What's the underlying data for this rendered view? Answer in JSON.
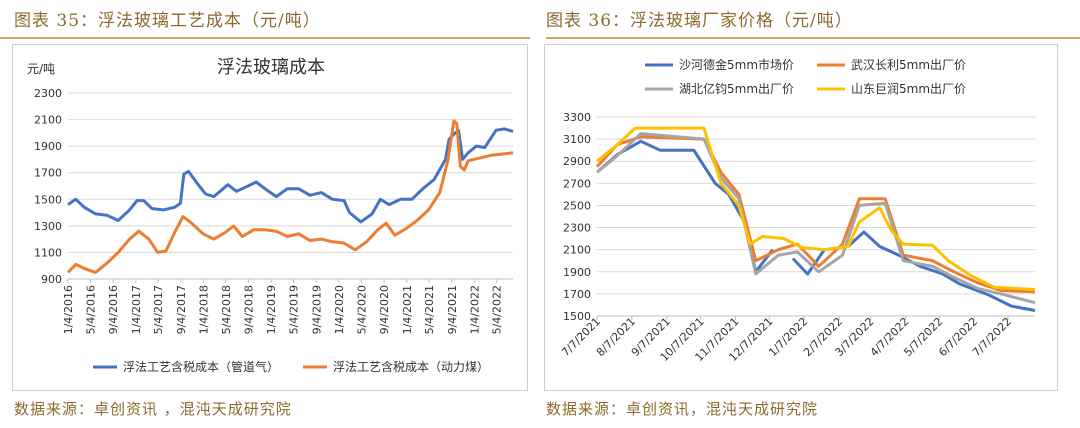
{
  "left": {
    "fig_title": "图表 35：浮法玻璃工艺成本（元/吨）",
    "source": "数据来源：卓创资讯 ，混沌天成研究院"
  },
  "right": {
    "fig_title": "图表 36：浮法玻璃厂家价格（元/吨）",
    "source": "数据来源：卓创资讯，混沌天成研究院"
  },
  "colors": {
    "blue": "#4472c4",
    "orange": "#ed7d31",
    "gray": "#a5a5a5",
    "yellow": "#ffc000",
    "accent": "#8c6a2c"
  },
  "chart_data": [
    {
      "type": "line",
      "title": "浮法玻璃成本",
      "ylabel": "元/吨",
      "ylim": [
        900,
        2300
      ],
      "yticks": [
        "900",
        "1100",
        "1300",
        "1500",
        "1700",
        "1900",
        "2100",
        "2300"
      ],
      "xlim": [
        "2016-01-04",
        "2022-07-31"
      ],
      "xticks": [
        "1/4/2016",
        "5/4/2016",
        "9/4/2016",
        "1/4/2017",
        "5/4/2017",
        "9/4/2017",
        "1/4/2018",
        "5/4/2018",
        "9/4/2018",
        "1/4/2019",
        "5/4/2019",
        "9/4/2019",
        "1/4/2020",
        "5/4/2020",
        "9/4/2020",
        "1/4/2021",
        "5/4/2021",
        "9/4/2021",
        "1/4/2022",
        "5/4/2022"
      ],
      "legend": "bottom",
      "grid": true,
      "series": [
        {
          "name": "浮法工艺含税成本（管道气）",
          "points": [
            [
              "2016-01-04",
              1460
            ],
            [
              "2016-02-15",
              1500
            ],
            [
              "2016-04-01",
              1440
            ],
            [
              "2016-06-01",
              1390
            ],
            [
              "2016-08-01",
              1380
            ],
            [
              "2016-10-01",
              1340
            ],
            [
              "2016-12-01",
              1420
            ],
            [
              "2017-01-10",
              1490
            ],
            [
              "2017-02-15",
              1490
            ],
            [
              "2017-04-01",
              1430
            ],
            [
              "2017-06-01",
              1420
            ],
            [
              "2017-08-01",
              1440
            ],
            [
              "2017-09-01",
              1470
            ],
            [
              "2017-09-20",
              1690
            ],
            [
              "2017-10-15",
              1710
            ],
            [
              "2017-12-01",
              1620
            ],
            [
              "2018-01-15",
              1540
            ],
            [
              "2018-03-01",
              1520
            ],
            [
              "2018-05-15",
              1610
            ],
            [
              "2018-07-01",
              1560
            ],
            [
              "2018-09-01",
              1600
            ],
            [
              "2018-10-15",
              1630
            ],
            [
              "2018-12-01",
              1580
            ],
            [
              "2019-02-01",
              1520
            ],
            [
              "2019-04-01",
              1580
            ],
            [
              "2019-06-01",
              1580
            ],
            [
              "2019-08-01",
              1530
            ],
            [
              "2019-10-01",
              1550
            ],
            [
              "2019-12-01",
              1500
            ],
            [
              "2020-02-01",
              1490
            ],
            [
              "2020-03-01",
              1400
            ],
            [
              "2020-05-01",
              1330
            ],
            [
              "2020-07-01",
              1390
            ],
            [
              "2020-08-15",
              1500
            ],
            [
              "2020-10-01",
              1460
            ],
            [
              "2020-12-01",
              1500
            ],
            [
              "2021-02-01",
              1500
            ],
            [
              "2021-04-01",
              1580
            ],
            [
              "2021-06-01",
              1650
            ],
            [
              "2021-08-01",
              1800
            ],
            [
              "2021-08-20",
              1950
            ],
            [
              "2021-09-15",
              1990
            ],
            [
              "2021-10-10",
              2020
            ],
            [
              "2021-11-01",
              1800
            ],
            [
              "2021-12-01",
              1850
            ],
            [
              "2022-01-15",
              1900
            ],
            [
              "2022-03-01",
              1890
            ],
            [
              "2022-05-01",
              2020
            ],
            [
              "2022-06-15",
              2030
            ],
            [
              "2022-07-31",
              2010
            ]
          ]
        },
        {
          "name": "浮法工艺含税成本（动力煤）",
          "points": [
            [
              "2016-01-04",
              950
            ],
            [
              "2016-02-15",
              1010
            ],
            [
              "2016-04-01",
              980
            ],
            [
              "2016-06-01",
              950
            ],
            [
              "2016-08-01",
              1020
            ],
            [
              "2016-10-01",
              1100
            ],
            [
              "2016-12-01",
              1200
            ],
            [
              "2017-01-20",
              1260
            ],
            [
              "2017-03-15",
              1200
            ],
            [
              "2017-05-01",
              1100
            ],
            [
              "2017-06-15",
              1110
            ],
            [
              "2017-08-01",
              1250
            ],
            [
              "2017-09-15",
              1370
            ],
            [
              "2017-11-01",
              1320
            ],
            [
              "2018-01-01",
              1240
            ],
            [
              "2018-03-01",
              1200
            ],
            [
              "2018-05-01",
              1250
            ],
            [
              "2018-06-15",
              1300
            ],
            [
              "2018-08-01",
              1220
            ],
            [
              "2018-10-01",
              1270
            ],
            [
              "2018-12-01",
              1270
            ],
            [
              "2019-02-01",
              1260
            ],
            [
              "2019-04-01",
              1220
            ],
            [
              "2019-06-01",
              1240
            ],
            [
              "2019-08-01",
              1190
            ],
            [
              "2019-10-01",
              1200
            ],
            [
              "2019-12-01",
              1180
            ],
            [
              "2020-02-01",
              1170
            ],
            [
              "2020-04-01",
              1120
            ],
            [
              "2020-06-01",
              1180
            ],
            [
              "2020-08-01",
              1270
            ],
            [
              "2020-09-15",
              1320
            ],
            [
              "2020-11-01",
              1230
            ],
            [
              "2021-01-01",
              1280
            ],
            [
              "2021-03-01",
              1340
            ],
            [
              "2021-05-01",
              1420
            ],
            [
              "2021-07-01",
              1550
            ],
            [
              "2021-08-15",
              1800
            ],
            [
              "2021-09-15",
              2090
            ],
            [
              "2021-10-01",
              2070
            ],
            [
              "2021-10-20",
              1750
            ],
            [
              "2021-11-10",
              1720
            ],
            [
              "2021-12-01",
              1790
            ],
            [
              "2022-02-01",
              1810
            ],
            [
              "2022-04-01",
              1830
            ],
            [
              "2022-06-01",
              1840
            ],
            [
              "2022-07-31",
              1850
            ]
          ]
        }
      ]
    },
    {
      "type": "line",
      "title": "",
      "ylim": [
        1500,
        3300
      ],
      "yticks": [
        "1500",
        "1700",
        "1900",
        "2100",
        "2300",
        "2500",
        "2700",
        "2900",
        "3100",
        "3300"
      ],
      "xlim": [
        "2021-07-07",
        "2022-07-31"
      ],
      "xticks": [
        "7/7/2021",
        "8/7/2021",
        "9/7/2021",
        "10/7/2021",
        "11/7/2021",
        "12/7/2021",
        "1/7/2022",
        "2/7/2022",
        "3/7/2022",
        "4/7/2022",
        "5/7/2022",
        "6/7/2022",
        "7/7/2022"
      ],
      "legend": "top",
      "grid": true,
      "series": [
        {
          "name": "沙河德金5mm市场价",
          "points": [
            [
              "2021-07-07",
              2800
            ],
            [
              "2021-07-25",
              2960
            ],
            [
              "2021-08-15",
              3080
            ],
            [
              "2021-09-01",
              3000
            ],
            [
              "2021-10-01",
              3000
            ],
            [
              "2021-10-20",
              2700
            ],
            [
              "2021-11-01",
              2600
            ],
            [
              "2021-11-15",
              2350
            ],
            [
              "2021-11-25",
              1900
            ],
            [
              "2021-12-10",
              2100
            ]
          ],
          "points_b": [
            [
              "2021-12-28",
              2020
            ],
            [
              "2022-01-10",
              1880
            ],
            [
              "2022-01-25",
              2100
            ],
            [
              "2022-02-15",
              2130
            ],
            [
              "2022-03-01",
              2260
            ],
            [
              "2022-03-15",
              2130
            ],
            [
              "2022-04-01",
              2050
            ],
            [
              "2022-04-20",
              1950
            ],
            [
              "2022-05-10",
              1880
            ],
            [
              "2022-05-25",
              1790
            ],
            [
              "2022-06-20",
              1690
            ],
            [
              "2022-07-10",
              1590
            ],
            [
              "2022-07-31",
              1550
            ]
          ]
        },
        {
          "name": "武汉长利5mm出厂价",
          "points": [
            [
              "2021-07-07",
              2850
            ],
            [
              "2021-07-25",
              3050
            ],
            [
              "2021-08-15",
              3120
            ],
            [
              "2021-10-10",
              3100
            ],
            [
              "2021-10-25",
              2800
            ],
            [
              "2021-11-10",
              2600
            ],
            [
              "2021-11-25",
              2000
            ],
            [
              "2021-12-15",
              2100
            ],
            [
              "2022-01-01",
              2150
            ],
            [
              "2022-01-20",
              1950
            ],
            [
              "2022-02-10",
              2150
            ],
            [
              "2022-02-25",
              2560
            ],
            [
              "2022-03-20",
              2560
            ],
            [
              "2022-04-05",
              2050
            ],
            [
              "2022-05-01",
              2000
            ],
            [
              "2022-05-20",
              1900
            ],
            [
              "2022-06-10",
              1800
            ],
            [
              "2022-07-01",
              1730
            ],
            [
              "2022-07-31",
              1720
            ]
          ]
        },
        {
          "name": "湖北亿钧5mm出厂价",
          "points": [
            [
              "2021-07-07",
              2800
            ],
            [
              "2021-07-25",
              2950
            ],
            [
              "2021-08-15",
              3150
            ],
            [
              "2021-10-10",
              3100
            ],
            [
              "2021-10-25",
              2750
            ],
            [
              "2021-11-10",
              2560
            ],
            [
              "2021-11-25",
              1880
            ],
            [
              "2021-12-15",
              2050
            ],
            [
              "2022-01-01",
              2080
            ],
            [
              "2022-01-20",
              1900
            ],
            [
              "2022-02-10",
              2050
            ],
            [
              "2022-02-25",
              2500
            ],
            [
              "2022-03-20",
              2520
            ],
            [
              "2022-04-05",
              2000
            ],
            [
              "2022-05-01",
              1950
            ],
            [
              "2022-05-20",
              1850
            ],
            [
              "2022-06-10",
              1750
            ],
            [
              "2022-07-01",
              1700
            ],
            [
              "2022-07-31",
              1620
            ]
          ]
        },
        {
          "name": "山东巨润5mm出厂价",
          "points": [
            [
              "2021-07-07",
              2900
            ],
            [
              "2021-07-25",
              3050
            ],
            [
              "2021-08-10",
              3200
            ],
            [
              "2021-10-10",
              3200
            ],
            [
              "2021-10-25",
              2700
            ],
            [
              "2021-11-10",
              2500
            ],
            [
              "2021-11-20",
              2150
            ],
            [
              "2021-12-01",
              2220
            ],
            [
              "2021-12-20",
              2200
            ],
            [
              "2022-01-05",
              2120
            ],
            [
              "2022-01-25",
              2100
            ],
            [
              "2022-02-15",
              2130
            ],
            [
              "2022-02-25",
              2350
            ],
            [
              "2022-03-15",
              2480
            ],
            [
              "2022-03-25",
              2280
            ],
            [
              "2022-04-05",
              2150
            ],
            [
              "2022-05-01",
              2140
            ],
            [
              "2022-05-15",
              2000
            ],
            [
              "2022-06-05",
              1860
            ],
            [
              "2022-06-25",
              1760
            ],
            [
              "2022-07-31",
              1740
            ]
          ]
        }
      ]
    }
  ]
}
